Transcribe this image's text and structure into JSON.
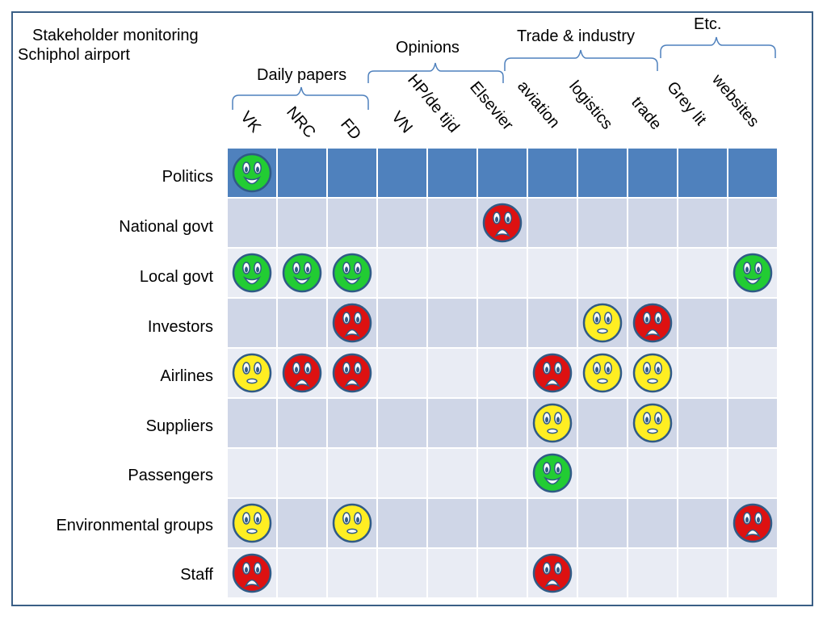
{
  "title": {
    "line1": "Stakeholder monitoring",
    "line2": "Schiphol airport"
  },
  "groups": [
    "Daily papers",
    "Opinions",
    "Trade & industry",
    "Etc."
  ],
  "columns": [
    "VK",
    "NRC",
    "FD",
    "VN",
    "HP/de tijd",
    "Elsevier",
    "aviation",
    "logistics",
    "trade",
    "Grey lit",
    "websites"
  ],
  "rows": [
    {
      "label": "Politics",
      "cells": [
        "happy",
        "",
        "",
        "",
        "",
        "",
        "",
        "",
        "",
        "",
        ""
      ]
    },
    {
      "label": "National govt",
      "cells": [
        "",
        "",
        "",
        "",
        "",
        "sad",
        "",
        "",
        "",
        "",
        ""
      ]
    },
    {
      "label": "Local govt",
      "cells": [
        "happy",
        "happy",
        "happy",
        "",
        "",
        "",
        "",
        "",
        "",
        "",
        "happy"
      ]
    },
    {
      "label": "Investors",
      "cells": [
        "",
        "",
        "sad",
        "",
        "",
        "",
        "",
        "neutral",
        "sad",
        "",
        ""
      ]
    },
    {
      "label": "Airlines",
      "cells": [
        "neutral",
        "sad",
        "sad",
        "",
        "",
        "",
        "sad",
        "neutral",
        "neutral",
        "",
        ""
      ]
    },
    {
      "label": "Suppliers",
      "cells": [
        "",
        "",
        "",
        "",
        "",
        "",
        "neutral",
        "",
        "neutral",
        "",
        ""
      ]
    },
    {
      "label": "Passengers",
      "cells": [
        "",
        "",
        "",
        "",
        "",
        "",
        "happy",
        "",
        "",
        "",
        ""
      ]
    },
    {
      "label": "Environmental groups",
      "cells": [
        "neutral",
        "",
        "neutral",
        "",
        "",
        "",
        "",
        "",
        "",
        "",
        "sad"
      ]
    },
    {
      "label": "Staff",
      "cells": [
        "sad",
        "",
        "",
        "",
        "",
        "",
        "sad",
        "",
        "",
        "",
        ""
      ]
    }
  ],
  "colors": {
    "frame": "#3a5f86",
    "header_row": "#4f81bd",
    "row_odd": "#cfd6e7",
    "row_even": "#e9ecf4",
    "bracket": "#4f81bd",
    "happy": "#22cc33",
    "neutral": "#ffee22",
    "sad": "#dd1111"
  }
}
